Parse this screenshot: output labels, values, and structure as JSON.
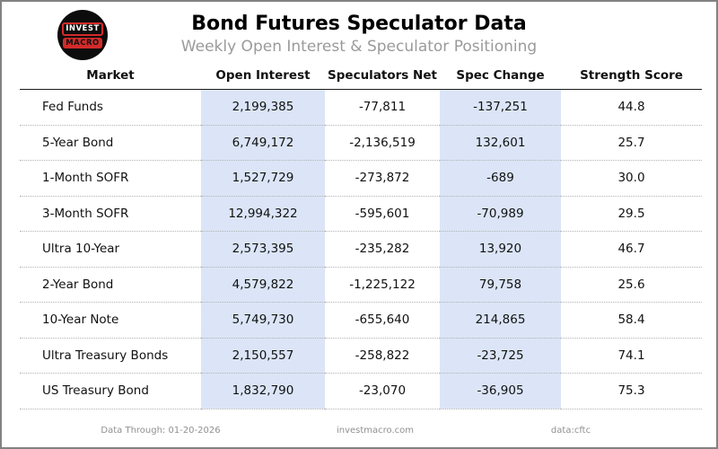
{
  "header": {
    "title": "Bond Futures Speculator Data",
    "subtitle": "Weekly Open Interest & Speculator Positioning",
    "logo": {
      "line1": "INVEST",
      "line2": "MACRO"
    }
  },
  "chart_data": {
    "type": "table",
    "title": "Bond Futures Speculator Data",
    "subtitle": "Weekly Open Interest & Speculator Positioning",
    "columns": [
      "Market",
      "Open Interest",
      "Speculators Net",
      "Spec Change",
      "Strength Score"
    ],
    "highlighted_columns": [
      "Open Interest",
      "Spec Change"
    ],
    "rows": [
      [
        "Fed Funds",
        "2,199,385",
        "-77,811",
        "-137,251",
        "44.8"
      ],
      [
        "5-Year Bond",
        "6,749,172",
        "-2,136,519",
        "132,601",
        "25.7"
      ],
      [
        "1-Month SOFR",
        "1,527,729",
        "-273,872",
        "-689",
        "30.0"
      ],
      [
        "3-Month SOFR",
        "12,994,322",
        "-595,601",
        "-70,989",
        "29.5"
      ],
      [
        "Ultra 10-Year",
        "2,573,395",
        "-235,282",
        "13,920",
        "46.7"
      ],
      [
        "2-Year Bond",
        "4,579,822",
        "-1,225,122",
        "79,758",
        "25.6"
      ],
      [
        "10-Year Note",
        "5,749,730",
        "-655,640",
        "214,865",
        "58.4"
      ],
      [
        "Ultra Treasury Bonds",
        "2,150,557",
        "-258,822",
        "-23,725",
        "74.1"
      ],
      [
        "US Treasury Bond",
        "1,832,790",
        "-23,070",
        "-36,905",
        "75.3"
      ]
    ]
  },
  "footer": {
    "data_through": "Data Through: 01-20-2026",
    "website": "investmacro.com",
    "source": "data:cftc"
  },
  "colors": {
    "highlight": "#dbe5f7",
    "logo_red": "#d42a2a",
    "logo_black": "#0c0c0c",
    "subtitle_gray": "#9a9a9a",
    "footer_gray": "#909090"
  }
}
